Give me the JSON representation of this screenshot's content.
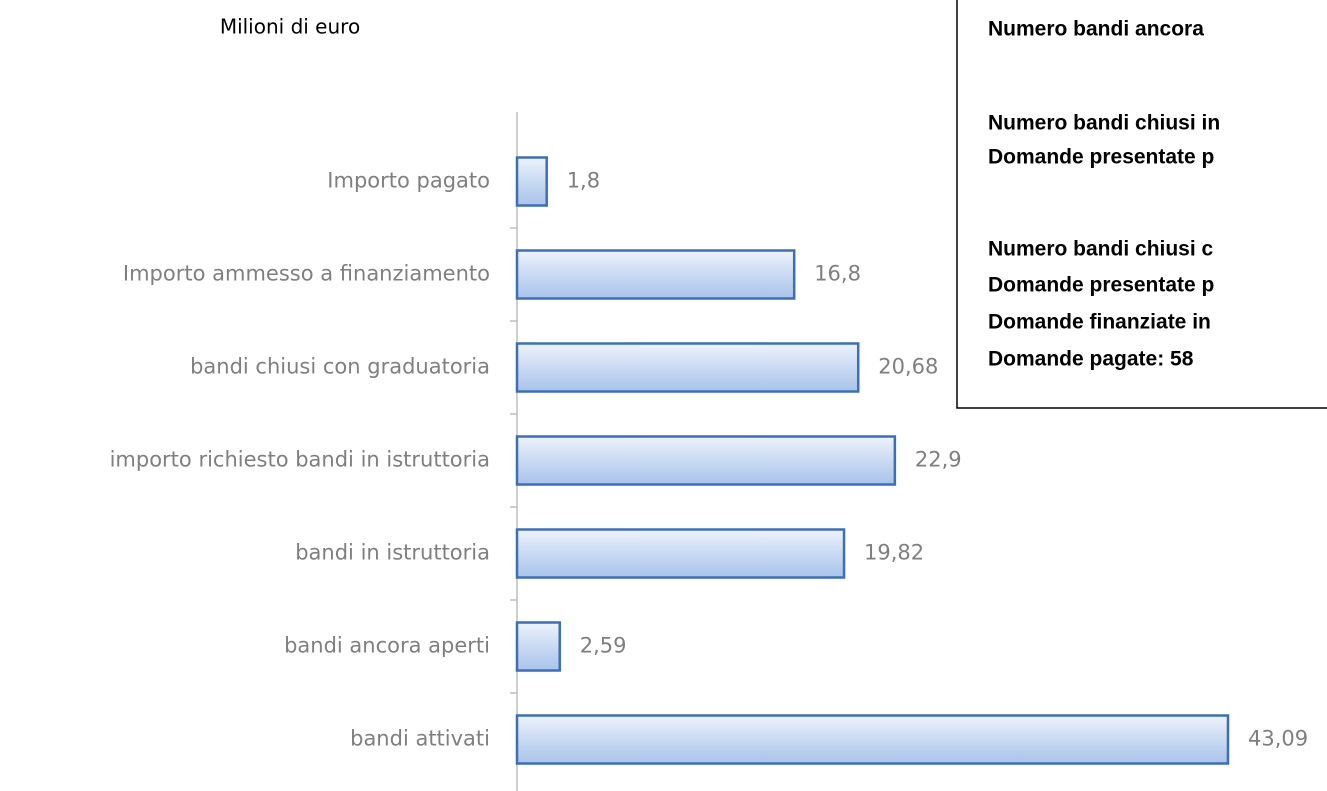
{
  "chart_data": {
    "type": "bar",
    "orientation": "horizontal",
    "title": "Milioni di euro",
    "categories": [
      "Importo pagato",
      "Importo ammesso a finanziamento",
      "bandi chiusi con graduatoria",
      "importo richiesto bandi in istruttoria",
      "bandi  in istruttoria",
      "bandi ancora aperti",
      "bandi attivati"
    ],
    "values": [
      1.8,
      16.8,
      20.68,
      22.9,
      19.82,
      2.59,
      43.09
    ],
    "value_labels": [
      "1,8",
      "16,8",
      "20,68",
      "22,9",
      "19,82",
      "2,59",
      "43,09"
    ],
    "color": "#3d6fb6",
    "xlim": [
      0,
      45
    ],
    "annotations": [
      "Numero bandi ancora",
      "Numero bandi chiusi in",
      "Domande presentate p",
      "Numero bandi chiusi c",
      "Domande presentate p",
      "Domande finanziate in",
      "Domande pagate: 58"
    ]
  }
}
